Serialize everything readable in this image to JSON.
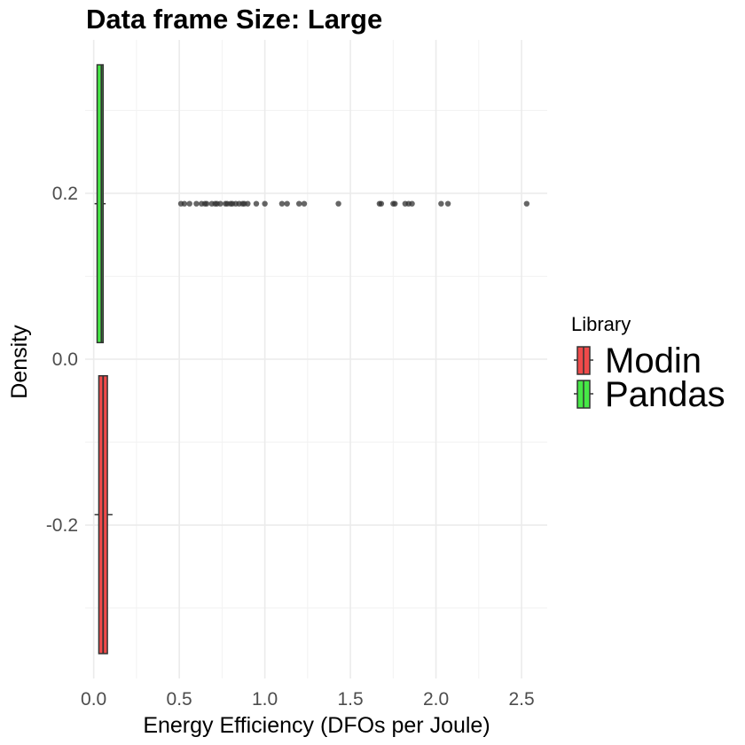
{
  "chart_data": {
    "type": "boxplot",
    "title": "Data frame Size: Large",
    "xlabel": "Energy Efficiency (DFOs per Joule)",
    "ylabel": "Density",
    "xlim": [
      -0.05,
      2.65
    ],
    "ylim": [
      -0.385,
      0.385
    ],
    "x_ticks": [
      0.0,
      0.5,
      1.0,
      1.5,
      2.0,
      2.5
    ],
    "x_tick_labels": [
      "0.0",
      "0.5",
      "1.0",
      "1.5",
      "2.0",
      "2.5"
    ],
    "y_ticks": [
      -0.2,
      0.0,
      0.2
    ],
    "y_tick_labels": [
      "-0.2",
      "0.0",
      "0.2"
    ],
    "grid": true,
    "legend": {
      "title": "Library",
      "position": "right",
      "entries": [
        {
          "name": "Modin",
          "color": "#f04a4a"
        },
        {
          "name": "Pandas",
          "color": "#46e846"
        }
      ]
    },
    "series": [
      {
        "name": "Pandas",
        "y_center": 0.1875,
        "box_y_range": [
          0.02,
          0.355
        ],
        "whisker_low": 0.005,
        "q1": 0.02,
        "median": 0.045,
        "q3": 0.055,
        "whisker_high": 0.07,
        "color": "#46e846",
        "outliers": [
          0.51,
          0.53,
          0.56,
          0.6,
          0.63,
          0.65,
          0.66,
          0.69,
          0.71,
          0.72,
          0.74,
          0.77,
          0.78,
          0.8,
          0.81,
          0.83,
          0.85,
          0.87,
          0.88,
          0.9,
          0.95,
          1.0,
          1.1,
          1.13,
          1.2,
          1.23,
          1.43,
          1.67,
          1.68,
          1.75,
          1.76,
          1.82,
          1.84,
          1.86,
          2.03,
          2.07,
          2.53
        ]
      },
      {
        "name": "Modin",
        "y_center": -0.1875,
        "box_y_range": [
          -0.355,
          -0.02
        ],
        "whisker_low": 0.005,
        "q1": 0.03,
        "median": 0.055,
        "q3": 0.08,
        "whisker_high": 0.11,
        "color": "#f04a4a",
        "outliers": []
      }
    ]
  }
}
